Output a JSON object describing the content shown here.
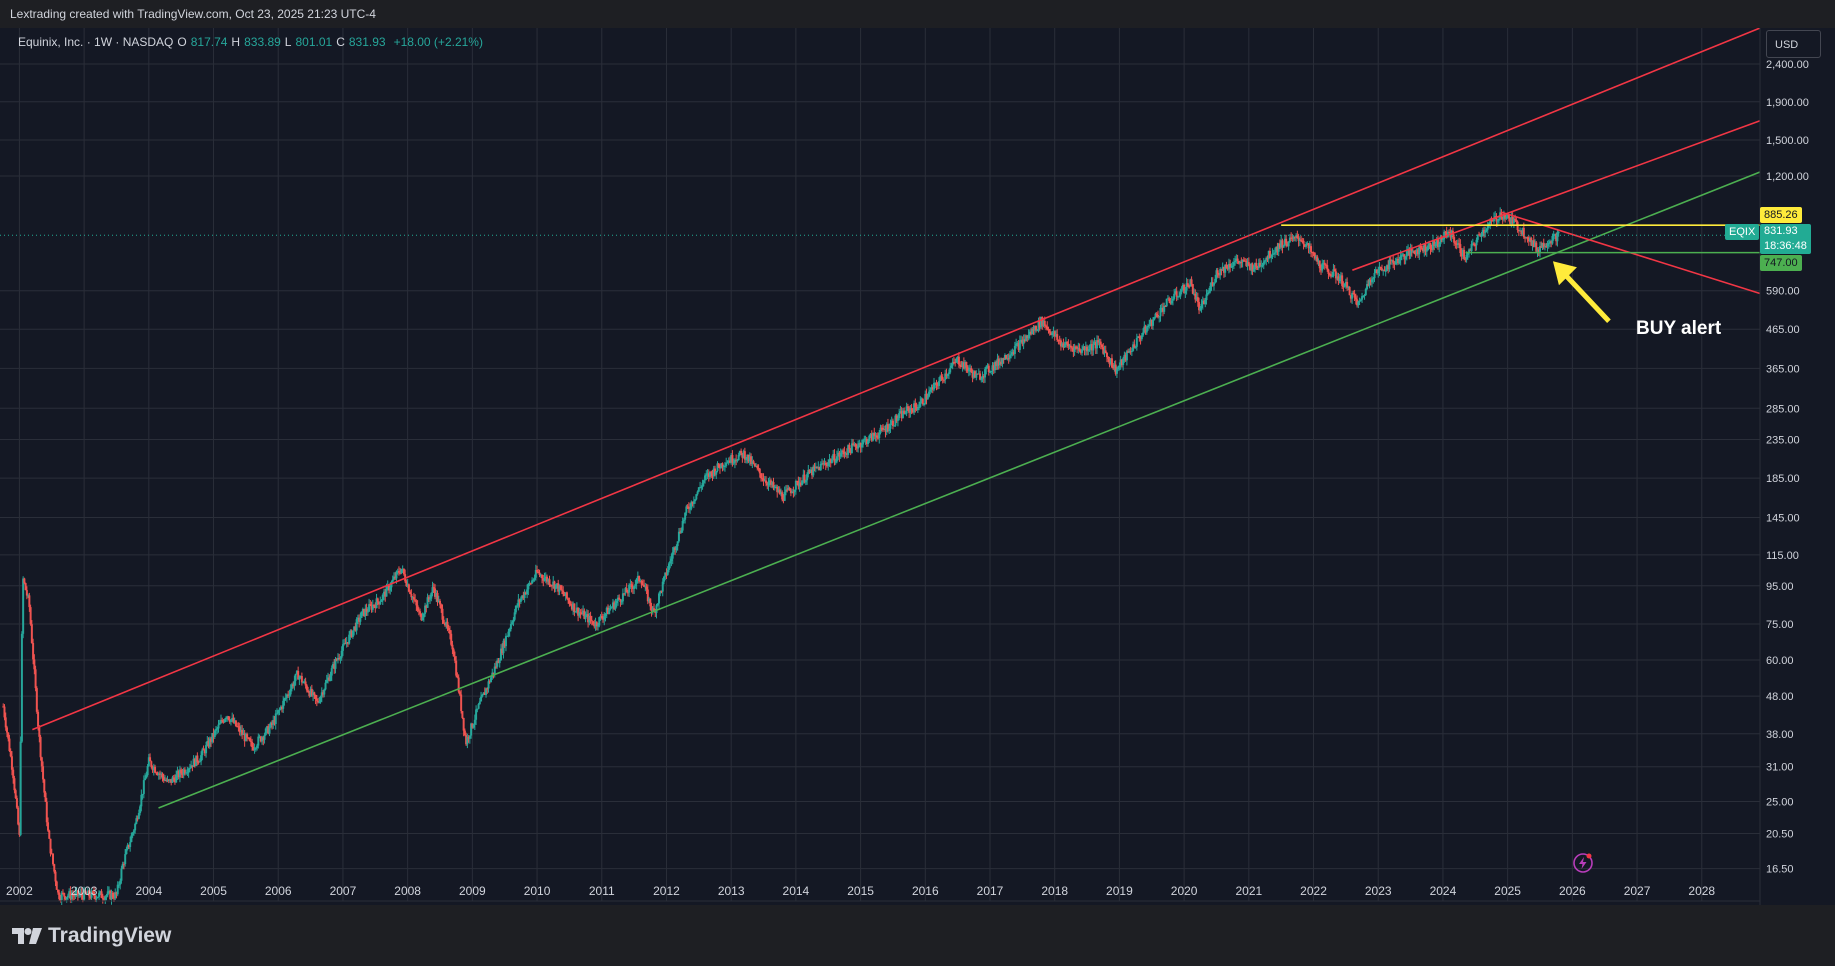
{
  "header": {
    "credit": "Lextrading created with TradingView.com, Oct 23, 2025 21:23 UTC-4"
  },
  "legend": {
    "symbol": "Equinix, Inc. · 1W · NASDAQ",
    "open_label": "O",
    "open": "817.74",
    "high_label": "H",
    "high": "833.89",
    "low_label": "L",
    "low": "801.01",
    "close_label": "C",
    "close": "831.93",
    "change": "+18.00 (+2.21%)"
  },
  "currency": "USD",
  "price_labels": {
    "resistance": "885.26",
    "ticker": "EQIX",
    "last": "831.93",
    "countdown": "18:36:48",
    "support": "747.00"
  },
  "annotation": "BUY alert",
  "brand": "TradingView",
  "colors": {
    "background": "#141824",
    "grid": "#2a2e39",
    "channel_red": "#f23645",
    "channel_green": "#4caf50",
    "level_yellow": "#ffeb3b",
    "up": "#26a69a",
    "down": "#ef5350",
    "arrow": "#ffeb3b"
  },
  "chart_data": {
    "type": "candlestick",
    "title": "",
    "y_scale": "log",
    "x_ticks": [
      "2002",
      "2003",
      "2004",
      "2005",
      "2006",
      "2007",
      "2008",
      "2009",
      "2010",
      "2011",
      "2012",
      "2013",
      "2014",
      "2015",
      "2016",
      "2017",
      "2018",
      "2019",
      "2020",
      "2021",
      "2022",
      "2023",
      "2024",
      "2025",
      "2026",
      "2027",
      "2028"
    ],
    "y_ticks": [
      "2,400.00",
      "1,900.00",
      "1,500.00",
      "1,200.00",
      "590.00",
      "465.00",
      "365.00",
      "285.00",
      "235.00",
      "185.00",
      "145.00",
      "115.00",
      "95.00",
      "75.00",
      "60.00",
      "48.00",
      "38.00",
      "31.00",
      "25.00",
      "20.50",
      "16.50"
    ],
    "ylim": [
      13.5,
      3000
    ],
    "xlim": [
      2001.7,
      2028.9
    ],
    "price_path": [
      [
        2001.75,
        45
      ],
      [
        2001.9,
        30
      ],
      [
        2002.0,
        20
      ],
      [
        2002.05,
        100
      ],
      [
        2002.15,
        85
      ],
      [
        2002.3,
        38
      ],
      [
        2002.45,
        20
      ],
      [
        2002.6,
        14
      ],
      [
        2003.5,
        14
      ],
      [
        2003.6,
        17
      ],
      [
        2003.8,
        22
      ],
      [
        2004.0,
        32
      ],
      [
        2004.3,
        28
      ],
      [
        2004.8,
        33
      ],
      [
        2005.2,
        43
      ],
      [
        2005.6,
        35
      ],
      [
        2005.9,
        40
      ],
      [
        2006.3,
        55
      ],
      [
        2006.6,
        46
      ],
      [
        2006.9,
        60
      ],
      [
        2007.3,
        80
      ],
      [
        2007.6,
        88
      ],
      [
        2007.9,
        106
      ],
      [
        2008.2,
        78
      ],
      [
        2008.4,
        94
      ],
      [
        2008.7,
        65
      ],
      [
        2008.9,
        36
      ],
      [
        2009.1,
        45
      ],
      [
        2009.4,
        60
      ],
      [
        2009.7,
        85
      ],
      [
        2010.0,
        103
      ],
      [
        2010.3,
        95
      ],
      [
        2010.6,
        82
      ],
      [
        2010.9,
        75
      ],
      [
        2011.2,
        85
      ],
      [
        2011.6,
        100
      ],
      [
        2011.8,
        80
      ],
      [
        2012.0,
        103
      ],
      [
        2012.3,
        150
      ],
      [
        2012.6,
        185
      ],
      [
        2012.9,
        205
      ],
      [
        2013.2,
        215
      ],
      [
        2013.5,
        185
      ],
      [
        2013.8,
        165
      ],
      [
        2014.2,
        190
      ],
      [
        2014.6,
        210
      ],
      [
        2014.9,
        225
      ],
      [
        2015.3,
        245
      ],
      [
        2015.7,
        280
      ],
      [
        2015.9,
        290
      ],
      [
        2016.2,
        335
      ],
      [
        2016.5,
        385
      ],
      [
        2016.8,
        345
      ],
      [
        2017.1,
        375
      ],
      [
        2017.5,
        430
      ],
      [
        2017.8,
        490
      ],
      [
        2018.1,
        425
      ],
      [
        2018.4,
        410
      ],
      [
        2018.7,
        425
      ],
      [
        2018.95,
        360
      ],
      [
        2019.3,
        440
      ],
      [
        2019.7,
        540
      ],
      [
        2020.1,
        620
      ],
      [
        2020.25,
        520
      ],
      [
        2020.5,
        660
      ],
      [
        2020.8,
        710
      ],
      [
        2021.1,
        680
      ],
      [
        2021.5,
        790
      ],
      [
        2021.8,
        820
      ],
      [
        2022.1,
        690
      ],
      [
        2022.4,
        640
      ],
      [
        2022.7,
        540
      ],
      [
        2022.9,
        650
      ],
      [
        2023.2,
        700
      ],
      [
        2023.5,
        750
      ],
      [
        2023.9,
        790
      ],
      [
        2024.1,
        850
      ],
      [
        2024.35,
        720
      ],
      [
        2024.6,
        850
      ],
      [
        2024.9,
        950
      ],
      [
        2025.1,
        900
      ],
      [
        2025.3,
        830
      ],
      [
        2025.45,
        760
      ],
      [
        2025.6,
        800
      ],
      [
        2025.8,
        832
      ]
    ],
    "lines": [
      {
        "name": "",
        "color": "red",
        "from": [
          2002.2,
          39
        ],
        "to": [
          2028.9,
          3000
        ]
      },
      {
        "name": "",
        "color": "red",
        "from": [
          2022.6,
          670
        ],
        "to": [
          2028.9,
          1690
        ]
      },
      {
        "name": "",
        "color": "green",
        "from": [
          2004.15,
          24
        ],
        "to": [
          2028.9,
          1230
        ]
      },
      {
        "name": "",
        "color": "red",
        "from": [
          2024.9,
          960
        ],
        "to": [
          2028.9,
          580
        ]
      },
      {
        "name": "",
        "color": "yellow",
        "from": [
          2021.5,
          885.26
        ],
        "to": [
          2028.9,
          885.26
        ]
      },
      {
        "name": "",
        "color": "green",
        "from": [
          2024.35,
          747
        ],
        "to": [
          2028.9,
          747
        ]
      }
    ],
    "last_price": 831.93,
    "grid": true
  }
}
